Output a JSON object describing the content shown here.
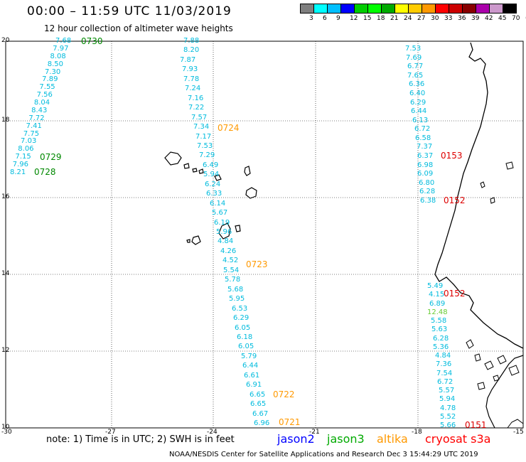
{
  "title": "00:00 – 11:59 UTC 11/03/2019",
  "subtitle": "12 hour collection of altimeter wave heights",
  "colorbar": {
    "colors": [
      "#7f7f7f",
      "#00ffff",
      "#00bfff",
      "#0000ff",
      "#00cc00",
      "#00ff00",
      "#00aa00",
      "#ffff00",
      "#ffcc00",
      "#ff9900",
      "#ff0000",
      "#cc0000",
      "#880000",
      "#aa00aa",
      "#cc99cc",
      "#000000"
    ],
    "labels": [
      "3",
      "6",
      "9",
      "12",
      "15",
      "18",
      "21",
      "24",
      "27",
      "30",
      "33",
      "36",
      "39",
      "42",
      "45",
      "70",
      "(ft)"
    ]
  },
  "axes": {
    "lon_ticks": [
      "-30",
      "-27",
      "-24",
      "-21",
      "-18",
      "-15"
    ],
    "lat_ticks": [
      "20",
      "18",
      "16",
      "14",
      "12",
      "10"
    ]
  },
  "note": "note: 1) Time is in UTC; 2) SWH is in feet",
  "legend": [
    {
      "name": "jason2",
      "color": "#0000ff"
    },
    {
      "name": "jason3",
      "color": "#00aa00"
    },
    {
      "name": "altika",
      "color": "#ff9900"
    },
    {
      "name": "cryosat s3a",
      "color": "#ff0000"
    }
  ],
  "credit": "NOAA/NESDIS Center for Satellite Applications and Research     Dec  3 15:44:29 UTC 2019",
  "tracks": {
    "t1": {
      "color": "#00bbdd",
      "values": [
        "7.68",
        "7.97",
        "8.08",
        "8.50",
        "7.30",
        "7.89",
        "7.55",
        "7.56",
        "8.04",
        "8.43",
        "7.72",
        "7.41",
        "7.75",
        "7.03",
        "8.06",
        "7.15",
        "7.96",
        "8.21"
      ]
    },
    "t2": {
      "color": "#00bbdd",
      "values": [
        "7.88",
        "8.20",
        "7.87",
        "7.93",
        "7.78",
        "7.24",
        "7.16",
        "7.22",
        "7.57",
        "7.34",
        "7.17",
        "7.53",
        "7.29",
        "6.49",
        "5.94",
        "6.24",
        "6.33",
        "6.14",
        "5.67",
        "6.19",
        "5.96",
        "4.84",
        "4.26",
        "4.52",
        "5.54",
        "5.78",
        "5.68",
        "5.95",
        "6.53",
        "6.29",
        "6.05",
        "6.18",
        "6.05",
        "5.79",
        "6.44",
        "6.61",
        "6.91",
        "6.65",
        "6.65",
        "6.67",
        "6.96"
      ]
    },
    "t3": {
      "color": "#00bbdd",
      "values": [
        "7.53",
        "7.69",
        "6.77",
        "7.65",
        "6.36",
        "6.40",
        "6.29",
        "6.44",
        "6.13",
        "6.72",
        "6.58",
        "7.37",
        "6.37",
        "6.98",
        "6.09",
        "6.80",
        "6.28",
        "6.38"
      ]
    },
    "t4": {
      "color": "#00bbdd",
      "values": [
        "5.49",
        "4.15",
        "6.89",
        "12.48",
        "5.58",
        "5.63",
        "6.28",
        "5.36",
        "4.84",
        "7.36",
        "7.54",
        "6.72",
        "5.57",
        "5.94",
        "4.78",
        "5.52",
        "5.66"
      ]
    }
  },
  "time_labels": [
    {
      "text": "0730",
      "color": "#008800"
    },
    {
      "text": "0729",
      "color": "#008800"
    },
    {
      "text": "0728",
      "color": "#008800"
    },
    {
      "text": "0724",
      "color": "#ff9900"
    },
    {
      "text": "0723",
      "color": "#ff9900"
    },
    {
      "text": "0722",
      "color": "#ff9900"
    },
    {
      "text": "0721",
      "color": "#ff9900"
    },
    {
      "text": "0153",
      "color": "#dd0000"
    },
    {
      "text": "0152",
      "color": "#dd0000"
    },
    {
      "text": "0152",
      "color": "#dd0000"
    },
    {
      "text": "0151",
      "color": "#dd0000"
    }
  ],
  "value_colors": {
    "default": "#00bbdd",
    "high": "#66cc33"
  }
}
